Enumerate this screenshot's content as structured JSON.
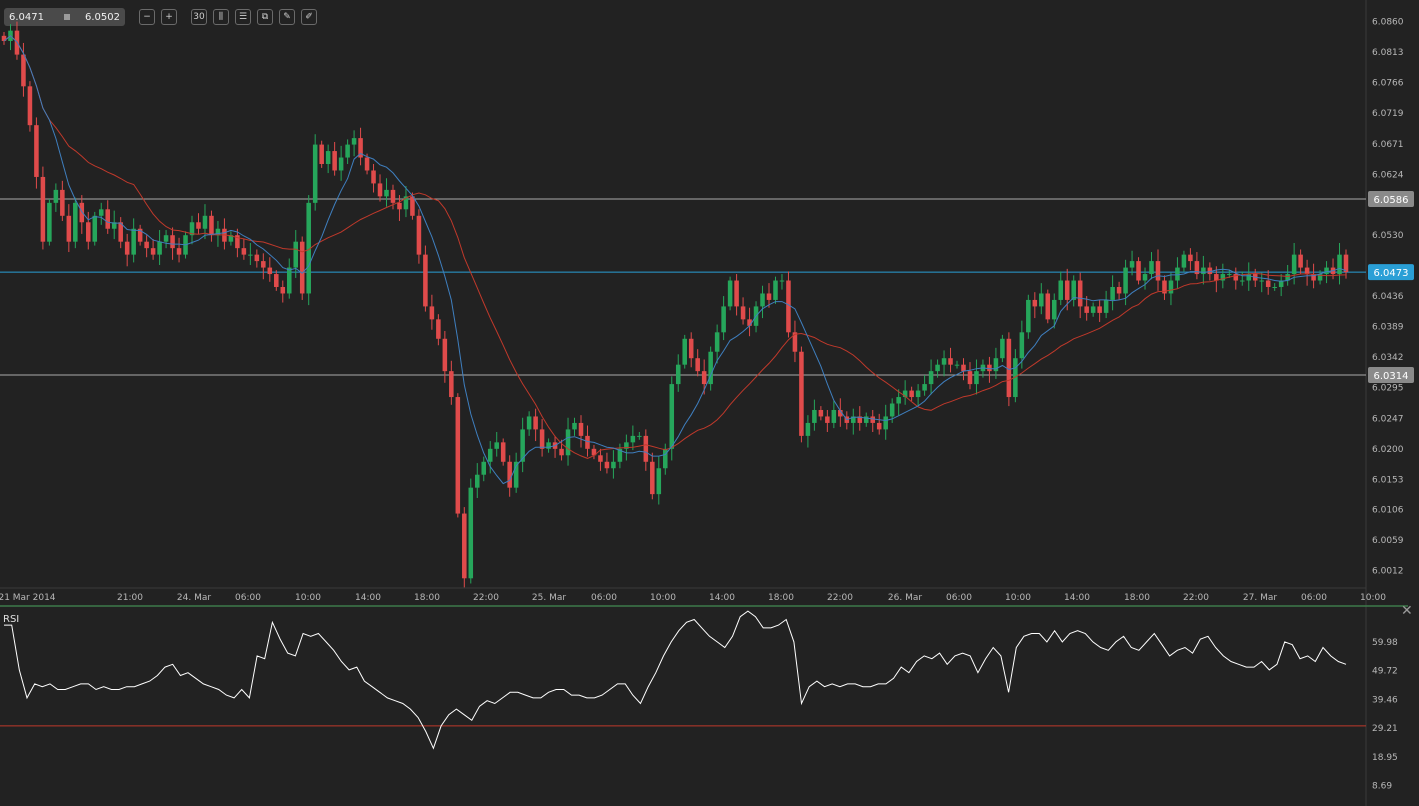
{
  "toolbar": {
    "bid": "6.0471",
    "ask": "6.0502",
    "buttons": [
      {
        "name": "zoom-out-icon",
        "glyph": "−"
      },
      {
        "name": "zoom-in-icon",
        "glyph": "+"
      },
      {
        "name": "timeframe-icon",
        "glyph": "30"
      },
      {
        "name": "chart-type-icon",
        "glyph": "⫼"
      },
      {
        "name": "indicators-icon",
        "glyph": "☰"
      },
      {
        "name": "templates-icon",
        "glyph": "⧉"
      },
      {
        "name": "edit-icon",
        "glyph": "✎"
      },
      {
        "name": "draw-icon",
        "glyph": "✐"
      }
    ]
  },
  "indicator_label": "RSI",
  "close_glyph": "✕",
  "colors": {
    "background": "#222222",
    "grid_text": "#b8b8b8",
    "up": "#26a65b",
    "down": "#e04b4b",
    "ma_fast": "#3f7fbf",
    "ma_slow": "#c0392b",
    "level_line": "#aaaaaa",
    "current_price_line": "#2a9fd6",
    "rsi_line": "#ffffff",
    "rsi_level": "#c0392b"
  },
  "chart_data": [
    {
      "type": "candlestick",
      "title": "",
      "x_ticks": [
        "21 Mar 2014",
        "21:00",
        "24. Mar",
        "06:00",
        "10:00",
        "14:00",
        "18:00",
        "22:00",
        "25. Mar",
        "06:00",
        "10:00",
        "14:00",
        "18:00",
        "22:00",
        "26. Mar",
        "06:00",
        "10:00",
        "14:00",
        "18:00",
        "22:00",
        "27. Mar",
        "06:00",
        "10:00"
      ],
      "y_ticks": [
        "6.0860",
        "6.0813",
        "6.0766",
        "6.0719",
        "6.0671",
        "6.0624",
        "6.0530",
        "6.0436",
        "6.0389",
        "6.0342",
        "6.0295",
        "6.0247",
        "6.0200",
        "6.0153",
        "6.0106",
        "6.0059",
        "6.0012"
      ],
      "ylim": [
        5.9985,
        6.0881
      ],
      "horizontal_levels": [
        {
          "label": "6.0586",
          "value": 6.0586,
          "style": "support-resistance"
        },
        {
          "label": "6.0314",
          "value": 6.0314,
          "style": "support-resistance"
        }
      ],
      "current_price": {
        "label": "6.0473",
        "value": 6.0473
      },
      "closes": [
        6.083,
        6.0846,
        6.0809,
        6.076,
        6.07,
        6.062,
        6.052,
        6.058,
        6.06,
        6.056,
        6.052,
        6.058,
        6.055,
        6.052,
        6.056,
        6.057,
        6.054,
        6.055,
        6.052,
        6.05,
        6.054,
        6.052,
        6.051,
        6.05,
        6.052,
        6.053,
        6.051,
        6.05,
        6.053,
        6.055,
        6.054,
        6.056,
        6.053,
        6.054,
        6.052,
        6.053,
        6.051,
        6.05,
        6.05,
        6.049,
        6.048,
        6.047,
        6.045,
        6.044,
        6.048,
        6.052,
        6.044,
        6.058,
        6.067,
        6.064,
        6.066,
        6.063,
        6.065,
        6.067,
        6.068,
        6.065,
        6.063,
        6.061,
        6.059,
        6.06,
        6.058,
        6.057,
        6.059,
        6.056,
        6.05,
        6.042,
        6.04,
        6.037,
        6.032,
        6.028,
        6.01,
        6.0,
        6.014,
        6.016,
        6.018,
        6.02,
        6.021,
        6.018,
        6.014,
        6.018,
        6.023,
        6.025,
        6.023,
        6.02,
        6.021,
        6.02,
        6.019,
        6.023,
        6.024,
        6.022,
        6.02,
        6.019,
        6.018,
        6.017,
        6.018,
        6.02,
        6.021,
        6.022,
        6.022,
        6.018,
        6.013,
        6.017,
        6.02,
        6.03,
        6.033,
        6.037,
        6.034,
        6.032,
        6.03,
        6.035,
        6.038,
        6.042,
        6.046,
        6.042,
        6.04,
        6.039,
        6.042,
        6.044,
        6.043,
        6.046,
        6.046,
        6.038,
        6.035,
        6.022,
        6.024,
        6.026,
        6.025,
        6.024,
        6.026,
        6.025,
        6.024,
        6.025,
        6.024,
        6.025,
        6.024,
        6.023,
        6.025,
        6.027,
        6.028,
        6.029,
        6.028,
        6.029,
        6.03,
        6.032,
        6.033,
        6.034,
        6.033,
        6.033,
        6.032,
        6.03,
        6.032,
        6.033,
        6.032,
        6.034,
        6.037,
        6.028,
        6.034,
        6.038,
        6.043,
        6.042,
        6.044,
        6.04,
        6.043,
        6.046,
        6.043,
        6.046,
        6.042,
        6.041,
        6.042,
        6.041,
        6.043,
        6.045,
        6.044,
        6.048,
        6.049,
        6.046,
        6.047,
        6.049,
        6.046,
        6.044,
        6.046,
        6.048,
        6.05,
        6.049,
        6.047,
        6.048,
        6.047,
        6.046,
        6.047,
        6.047,
        6.046,
        6.046,
        6.047,
        6.046,
        6.046,
        6.045,
        6.045,
        6.046,
        6.047,
        6.05,
        6.048,
        6.047,
        6.046,
        6.047,
        6.048,
        6.047,
        6.05,
        6.0473
      ],
      "series": [
        {
          "role": "ma_fast",
          "period": 8
        },
        {
          "role": "ma_slow",
          "period": 21
        }
      ]
    },
    {
      "type": "line",
      "title": "",
      "series_label": "RSI",
      "y_ticks": [
        "59.98",
        "49.72",
        "39.46",
        "29.21",
        "18.95",
        "8.69"
      ],
      "ylim": [
        3.56,
        72.81
      ],
      "levels": [
        30.0
      ],
      "values": [
        66,
        66,
        50,
        40,
        45,
        44,
        45,
        43,
        43,
        44,
        45,
        45,
        43,
        44,
        43,
        43,
        44,
        44,
        45,
        46,
        48,
        51,
        52,
        48,
        49,
        47,
        45,
        44,
        43,
        41,
        40,
        43,
        40,
        55,
        54,
        67,
        61,
        56,
        55,
        63,
        62,
        63,
        60,
        57,
        53,
        50,
        51,
        46,
        44,
        42,
        40,
        39,
        38,
        36,
        33,
        28,
        22,
        30,
        34,
        36,
        34,
        32,
        37,
        39,
        38,
        40,
        42,
        42,
        41,
        40,
        40,
        42,
        43,
        43,
        41,
        41,
        40,
        40,
        41,
        43,
        45,
        45,
        41,
        38,
        44,
        49,
        55,
        60,
        64,
        67,
        68,
        65,
        62,
        60,
        58,
        62,
        69,
        71,
        69,
        65,
        65,
        66,
        68,
        60,
        38,
        44,
        46,
        44,
        45,
        44,
        45,
        45,
        44,
        44,
        45,
        45,
        47,
        51,
        49,
        53,
        55,
        54,
        56,
        52,
        55,
        56,
        55,
        49,
        54,
        58,
        55,
        42,
        58,
        62,
        63,
        63,
        60,
        64,
        60,
        63,
        64,
        63,
        60,
        58,
        57,
        60,
        62,
        58,
        57,
        60,
        63,
        59,
        55,
        57,
        58,
        56,
        61,
        62,
        58,
        55,
        53,
        52,
        51,
        51,
        53,
        50,
        52,
        60,
        59,
        54,
        55,
        53,
        58,
        55,
        53,
        52
      ]
    }
  ]
}
